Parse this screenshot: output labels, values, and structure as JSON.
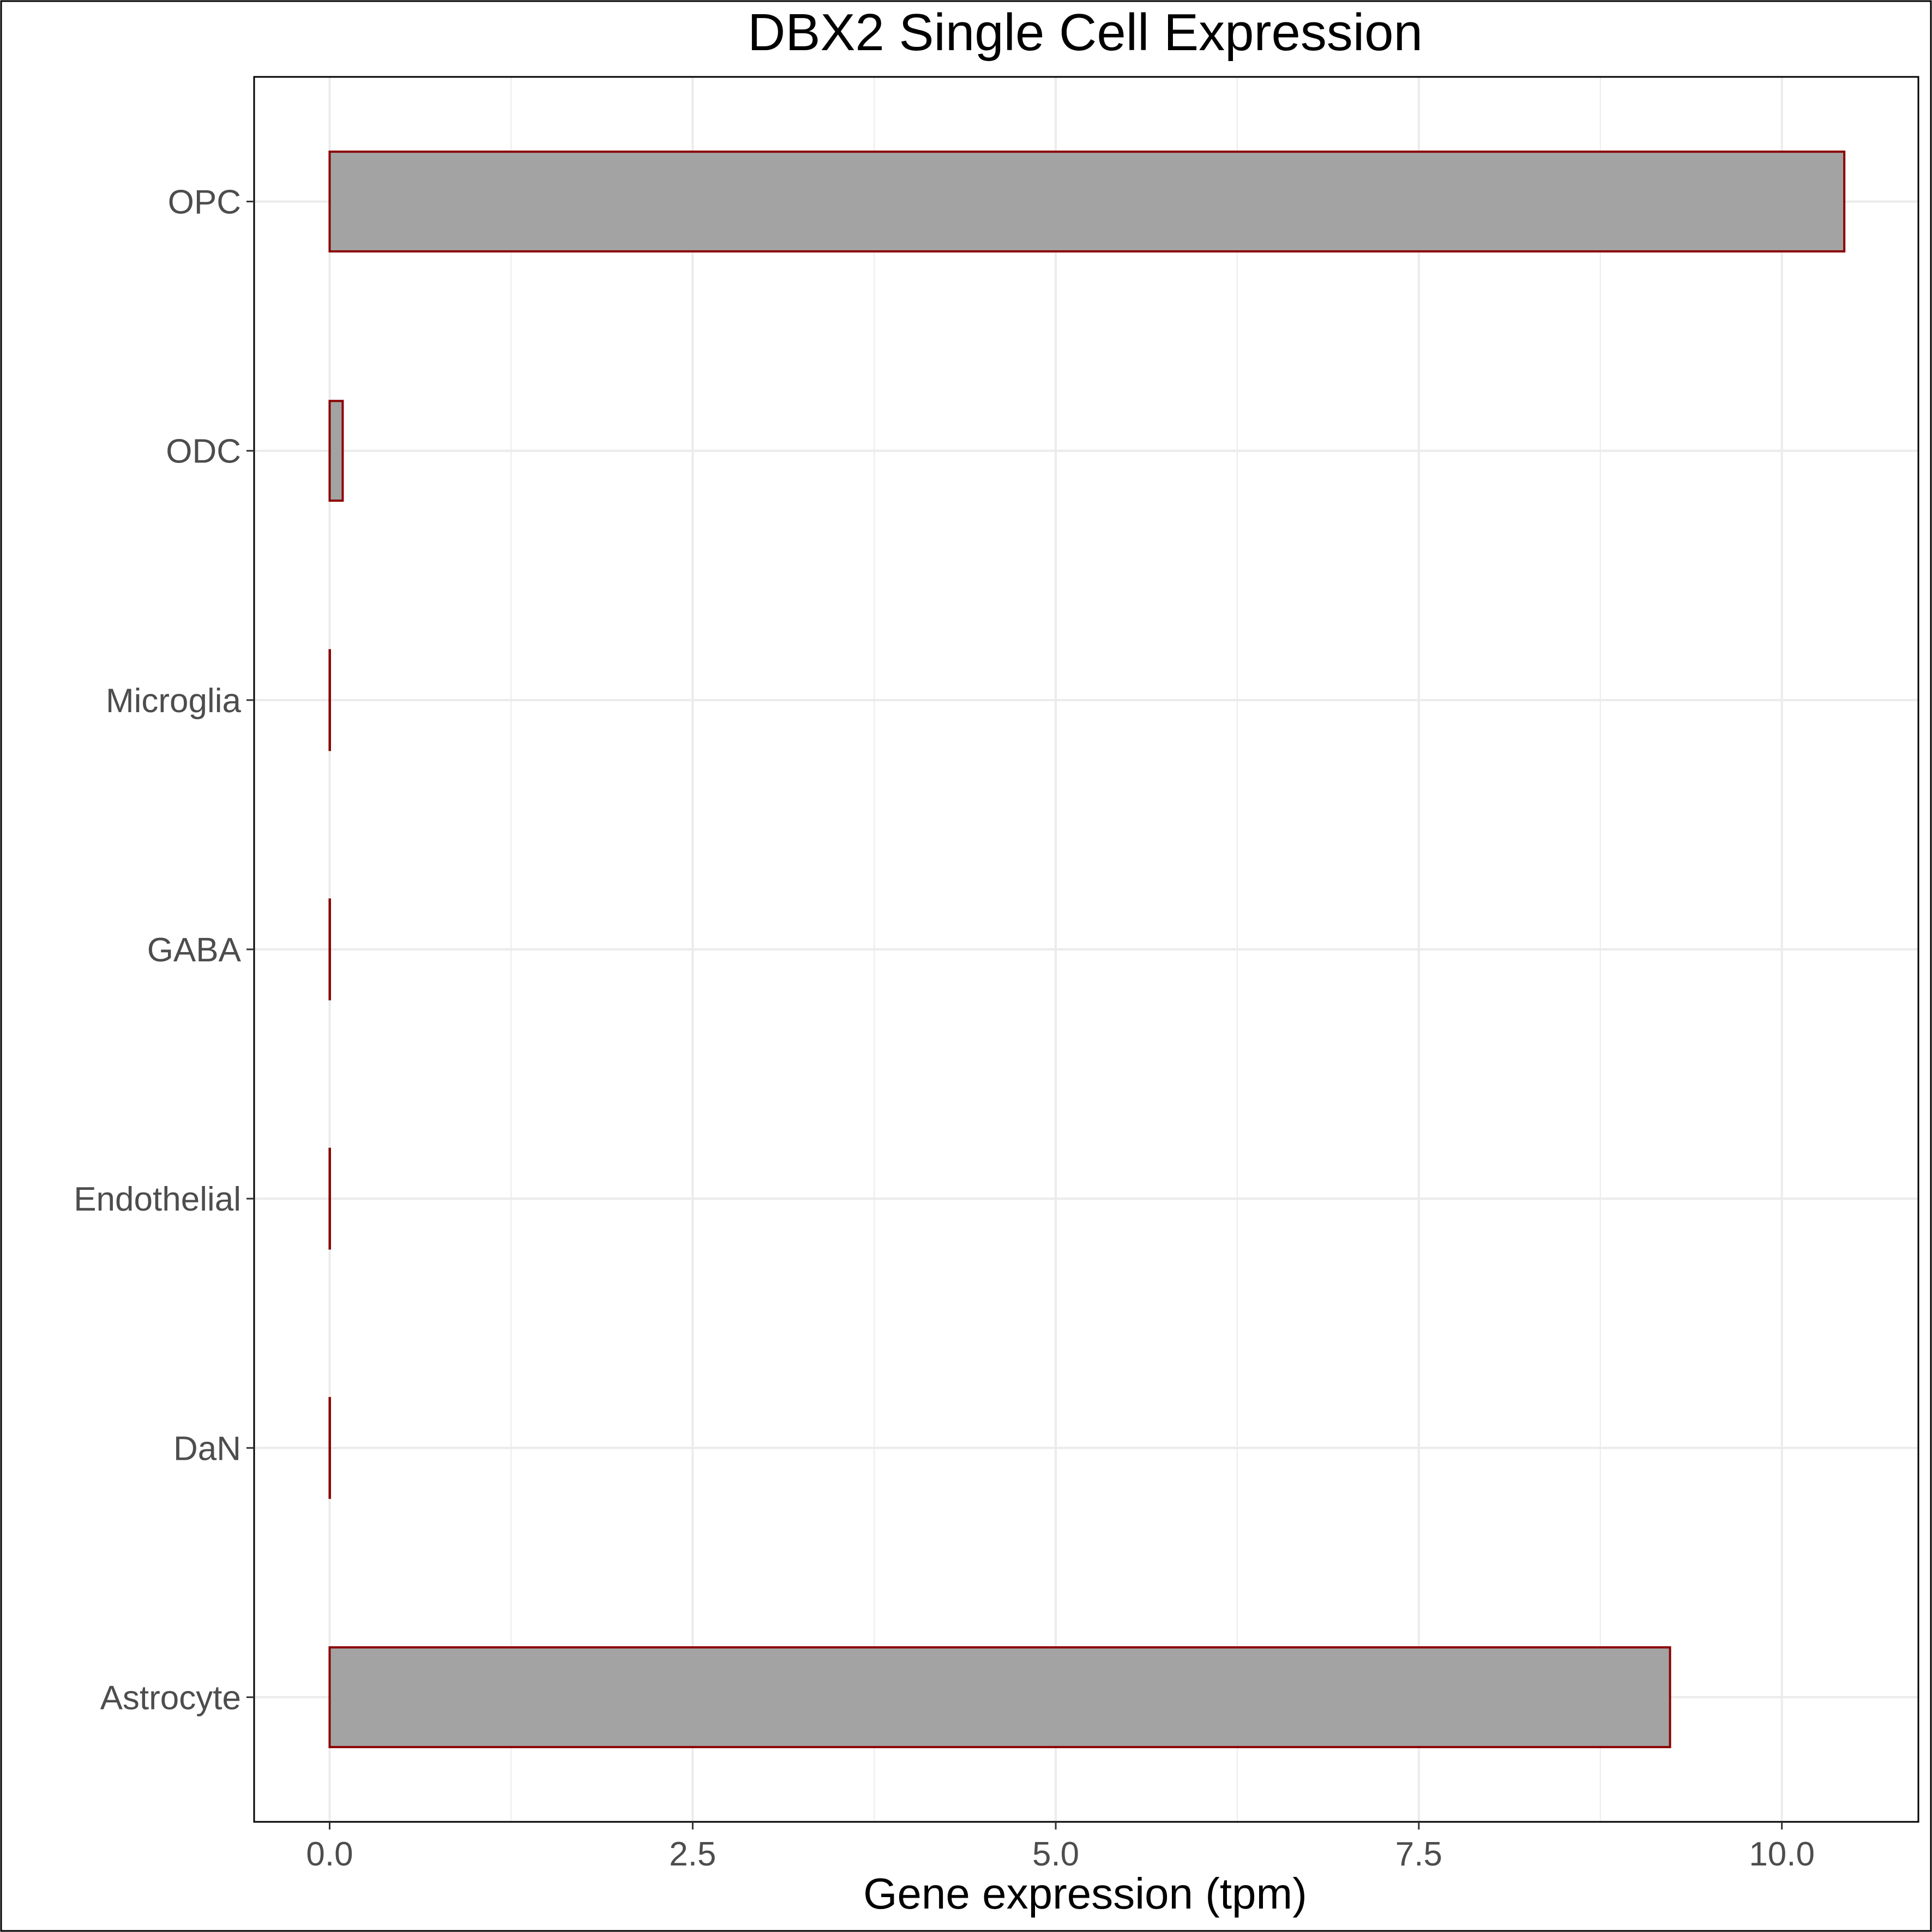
{
  "chart_data": {
    "type": "bar",
    "orientation": "horizontal",
    "title": "DBX2 Single Cell Expression",
    "xlabel": "Gene expression (tpm)",
    "ylabel": "",
    "categories": [
      "Astrocyte",
      "DaN",
      "Endothelial",
      "GABA",
      "Microglia",
      "ODC",
      "OPC"
    ],
    "values": [
      9.23,
      0.0,
      0.0,
      0.0,
      0.0,
      0.09,
      10.43
    ],
    "xlim": [
      -0.52,
      10.94
    ],
    "xticks": [
      0.0,
      2.5,
      5.0,
      7.5,
      10.0
    ],
    "xtick_labels": [
      "0.0",
      "2.5",
      "5.0",
      "7.5",
      "10.0"
    ],
    "grid": true,
    "legend": "none",
    "colors": {
      "bar_fill": "#a3a3a3",
      "bar_stroke": "#8b0000",
      "grid": "#ebebeb",
      "frame": "#000000"
    }
  }
}
